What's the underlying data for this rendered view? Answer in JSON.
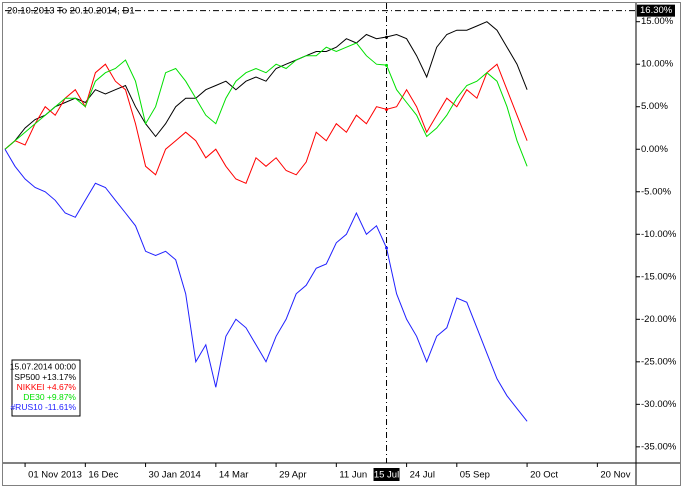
{
  "chart_data": {
    "type": "line",
    "title": "20.10.2013 To 20.10.2014, D1",
    "categories": [
      null,
      null,
      "01 Nov 2013",
      null,
      null,
      null,
      null,
      null,
      "16 Dec",
      null,
      null,
      null,
      null,
      null,
      "30 Jan 2014",
      null,
      null,
      null,
      null,
      null,
      null,
      "14 Mar",
      null,
      null,
      null,
      null,
      null,
      "29 Apr",
      null,
      null,
      null,
      null,
      null,
      "11 Jun",
      null,
      null,
      null,
      null,
      "15 Jul",
      null,
      "24 Jul",
      null,
      null,
      null,
      null,
      "05 Sep",
      null,
      null,
      null,
      null,
      null,
      null,
      "20 Oct",
      null,
      null,
      null,
      null,
      null,
      null,
      "20 Nov",
      null,
      null,
      null
    ],
    "series": [
      {
        "name": "SP500",
        "color": "#000000",
        "reading": {
          "value": 13.17,
          "label": "+13.17%"
        },
        "values": [
          0,
          1,
          2.5,
          3.5,
          4,
          5,
          5.5,
          6,
          5.5,
          7,
          6.5,
          7,
          7.5,
          5,
          3,
          1.5,
          3,
          5,
          6,
          6,
          7,
          7.5,
          8,
          7,
          8,
          8.5,
          8,
          9.5,
          10,
          10.5,
          11,
          11.5,
          11.5,
          12,
          13,
          12.5,
          13.5,
          13,
          13.2,
          13.5,
          13,
          11,
          8.5,
          12,
          13.5,
          14,
          14,
          14.5,
          15,
          14,
          12,
          10,
          7,
          null,
          null,
          null,
          null,
          null,
          null,
          null,
          null,
          null,
          null
        ]
      },
      {
        "name": "NIKKEI",
        "color": "#ff0000",
        "reading": {
          "value": 4.67,
          "label": "+4.67%"
        },
        "values": [
          0,
          1,
          0.5,
          3,
          5,
          4,
          6,
          7,
          5,
          9,
          10,
          8,
          7,
          3,
          -2,
          -3,
          0,
          1,
          2,
          1,
          -1,
          0,
          -2,
          -3.5,
          -4,
          -1,
          -2,
          -1,
          -2.5,
          -3,
          -1.5,
          2,
          1,
          3,
          2,
          4,
          3,
          5,
          4.7,
          5,
          7,
          5,
          2,
          4,
          6,
          5,
          7,
          6,
          9,
          10,
          7,
          4,
          1,
          null,
          null,
          null,
          null,
          null,
          null,
          null,
          null,
          null,
          null
        ]
      },
      {
        "name": "DE30",
        "color": "#00e000",
        "reading": {
          "value": 9.87,
          "label": "+9.87%"
        },
        "values": [
          0,
          1,
          2,
          3,
          4,
          5,
          6,
          6,
          5,
          8,
          9,
          9.5,
          10.5,
          8,
          3,
          5,
          9,
          9.5,
          8,
          6,
          4,
          3,
          6,
          8,
          9,
          9.5,
          9,
          10,
          9.5,
          10.5,
          11,
          11,
          12,
          11.5,
          12,
          12.5,
          11,
          10,
          9.9,
          7,
          5.5,
          4,
          1.5,
          2.5,
          4,
          6,
          7.5,
          8,
          9,
          8,
          5,
          1,
          -2,
          null,
          null,
          null,
          null,
          null,
          null,
          null,
          null,
          null,
          null
        ]
      },
      {
        "name": "#RUS10",
        "color": "#2020ff",
        "reading": {
          "value": -11.61,
          "label": "-11.61%"
        },
        "values": [
          0,
          -2,
          -3.5,
          -4.5,
          -5,
          -6,
          -7.5,
          -8,
          -6,
          -4,
          -4.5,
          -6,
          -7.5,
          -9,
          -12,
          -12.5,
          -12,
          -13,
          -17,
          -25,
          -23,
          -28,
          -22,
          -20,
          -21,
          -23,
          -25,
          -22,
          -20,
          -17,
          -16,
          -14,
          -13.5,
          -11,
          -10,
          -7.5,
          -10,
          -9,
          -11.6,
          -17,
          -20,
          -22,
          -25,
          -22,
          -21,
          -17.5,
          -18,
          -21,
          -24,
          -27,
          -29,
          -30.5,
          -32,
          null,
          null,
          null,
          null,
          null,
          null,
          null,
          null,
          null,
          null
        ]
      }
    ],
    "crosshair": {
      "date": "15.07.2014 00:00",
      "category": 38,
      "y": {
        "value": 16.3,
        "label": "16.30%"
      }
    },
    "ylim": [
      -36.9,
      17.2
    ],
    "yticks": [
      {
        "value": 15,
        "label": "15.00%"
      },
      {
        "value": 10,
        "label": "10.00%"
      },
      {
        "value": 5,
        "label": "5.00%"
      },
      {
        "value": 0,
        "label": "0.00%"
      },
      {
        "value": -5,
        "label": "-5.00%"
      },
      {
        "value": -10,
        "label": "-10.00%"
      },
      {
        "value": -15,
        "label": "-15.00%"
      },
      {
        "value": -20,
        "label": "-20.00%"
      },
      {
        "value": -25,
        "label": "-25.00%"
      },
      {
        "value": -30,
        "label": "-30.00%"
      },
      {
        "value": -35,
        "label": "-35.00%"
      }
    ],
    "grid": false
  }
}
